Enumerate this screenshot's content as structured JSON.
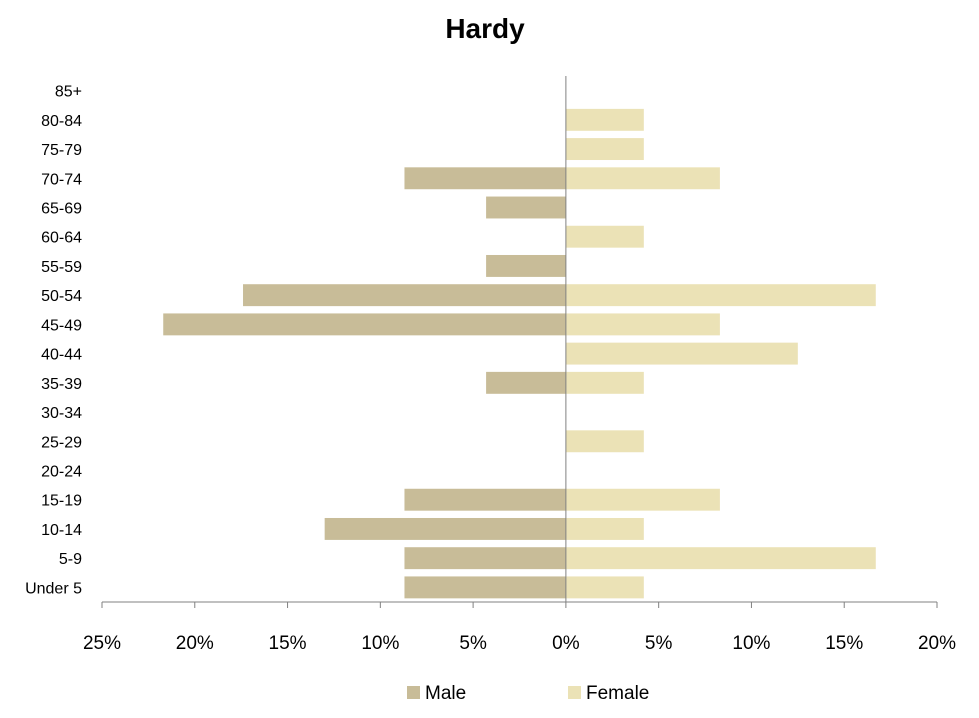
{
  "chart_data": {
    "type": "bar",
    "orientation": "horizontal",
    "subtype": "population-pyramid",
    "title": "Hardy",
    "categories": [
      "Under 5",
      "5-9",
      "10-14",
      "15-19",
      "20-24",
      "25-29",
      "30-34",
      "35-39",
      "40-44",
      "45-49",
      "50-54",
      "55-59",
      "60-64",
      "65-69",
      "70-74",
      "75-79",
      "80-84",
      "85+"
    ],
    "series": [
      {
        "name": "Male",
        "color": "#c8bc98",
        "direction": "left",
        "values": [
          8.7,
          8.7,
          13.0,
          8.7,
          0,
          0,
          0,
          4.3,
          0,
          21.7,
          17.4,
          4.3,
          0,
          4.3,
          8.7,
          0,
          0,
          0
        ]
      },
      {
        "name": "Female",
        "color": "#ebe2b6",
        "direction": "right",
        "values": [
          4.2,
          16.7,
          4.2,
          8.3,
          0,
          4.2,
          0,
          4.2,
          12.5,
          8.3,
          16.7,
          0,
          4.2,
          0,
          8.3,
          4.2,
          4.2,
          0
        ]
      }
    ],
    "x_ticks": [
      "25%",
      "20%",
      "15%",
      "10%",
      "5%",
      "0%",
      "5%",
      "10%",
      "15%",
      "20%"
    ],
    "xlim": [
      -25,
      20
    ],
    "xlabel": "",
    "ylabel": "",
    "grid": false,
    "legend_position": "bottom"
  }
}
